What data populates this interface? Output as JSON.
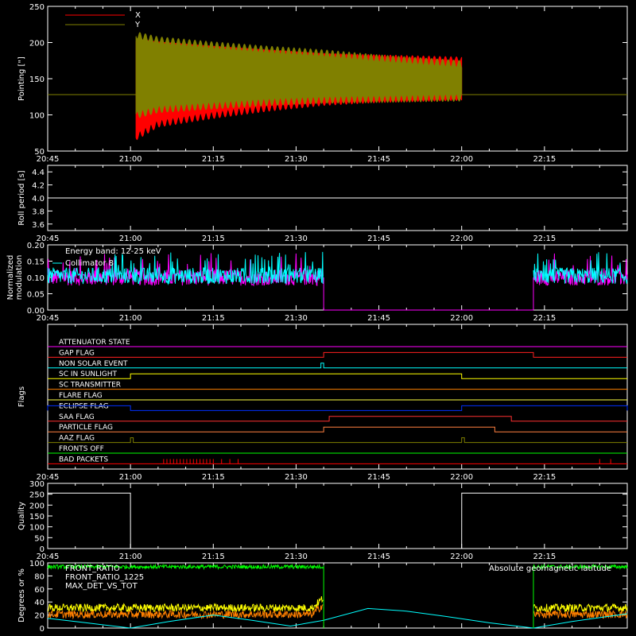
{
  "chart_data": [
    {
      "type": "line",
      "title": "",
      "ylabel": "Pointing [\"]",
      "ylim": [
        50,
        250
      ],
      "yticks": [
        "50",
        "100",
        "150",
        "200",
        "250"
      ],
      "legend": [
        "X",
        "Y"
      ],
      "colors": {
        "X": "#ff0000",
        "Y": "#808000",
        "baseline": "#808000"
      },
      "baseline": 128,
      "note_shape": "oscillating band",
      "series": [
        {
          "name": "X",
          "envelope_time_min": [
            15,
            16,
            20,
            30,
            40,
            50,
            60,
            75,
            76
          ],
          "upper": [
            128,
            200,
            196,
            190,
            185,
            180,
            178,
            175,
            128
          ],
          "lower": [
            128,
            70,
            88,
            100,
            110,
            118,
            122,
            125,
            128
          ]
        },
        {
          "name": "Y",
          "envelope_time_min": [
            15,
            16,
            20,
            30,
            40,
            50,
            60,
            75,
            76
          ],
          "upper": [
            128,
            210,
            203,
            196,
            190,
            185,
            178,
            170,
            128
          ],
          "lower": [
            128,
            100,
            108,
            113,
            118,
            121,
            122,
            124,
            128
          ]
        }
      ]
    },
    {
      "type": "line",
      "ylabel": "Roll period [s]",
      "ylim": [
        3.5,
        4.5
      ],
      "yticks": [
        "3.6",
        "3.8",
        "4.0",
        "4.2",
        "4.4"
      ],
      "series": [
        {
          "name": "",
          "value": 4.0,
          "color": "#ffffff"
        }
      ]
    },
    {
      "type": "line",
      "ylabel": "Normalized modulation",
      "ylim": [
        0,
        0.2
      ],
      "yticks": [
        "0.00",
        "0.05",
        "0.10",
        "0.15",
        "0.20"
      ],
      "annotations": [
        "Energy band: 12-25 keV",
        "Collimator 8"
      ],
      "series": [
        {
          "name": "Collimator 8",
          "color": "#00ffff",
          "mean": 0.105,
          "segments": [
            [
              0,
              50
            ],
            [
              88,
              105
            ]
          ]
        },
        {
          "name": "",
          "color": "#ff00ff",
          "mean": 0.1,
          "segments": [
            [
              0,
              50
            ],
            [
              88,
              105
            ]
          ]
        }
      ],
      "gap_minutes": [
        50,
        88
      ]
    },
    {
      "type": "line",
      "ylabel": "Flags",
      "flags": [
        {
          "name": "ATTENUATOR STATE",
          "color": "#ff00ff",
          "high": []
        },
        {
          "name": "GAP FLAG",
          "color": "#ff2020",
          "high": [
            [
              50,
              88
            ]
          ]
        },
        {
          "name": "NON SOLAR EVENT",
          "color": "#00ffff",
          "high": [
            [
              49.5,
              50
            ]
          ]
        },
        {
          "name": "SC IN SUNLIGHT",
          "color": "#ffff00",
          "high": [
            [
              15,
              75
            ]
          ]
        },
        {
          "name": "SC TRANSMITTER",
          "color": "#ff8000",
          "high": []
        },
        {
          "name": "FLARE FLAG",
          "color": "#ffff40",
          "high": []
        },
        {
          "name": "ECLIPSE FLAG",
          "color": "#0030ff",
          "high": [
            [
              0,
              15
            ],
            [
              75,
              105
            ]
          ]
        },
        {
          "name": "SAA FLAG",
          "color": "#ff3030",
          "high": [
            [
              51,
              84
            ]
          ]
        },
        {
          "name": "PARTICLE FLAG",
          "color": "#ff8040",
          "high": [
            [
              50,
              81
            ]
          ]
        },
        {
          "name": "AAZ FLAG",
          "color": "#808000",
          "high": [
            [
              15,
              15.5
            ],
            [
              75,
              75.5
            ]
          ]
        },
        {
          "name": "FRONTS OFF",
          "color": "#00ff00",
          "high": []
        },
        {
          "name": "BAD PACKETS",
          "color": "#ff0000",
          "ticks": [
            21,
            21.6,
            22.2,
            22.8,
            23.4,
            24,
            24.6,
            25.2,
            25.8,
            26.4,
            27,
            27.6,
            28.2,
            28.8,
            29.4,
            30,
            31.5,
            33,
            34.5,
            100,
            102
          ]
        }
      ]
    },
    {
      "type": "line",
      "ylabel": "Quality",
      "ylim": [
        0,
        300
      ],
      "yticks": [
        "0",
        "50",
        "100",
        "150",
        "200",
        "250",
        "300"
      ],
      "series": [
        {
          "name": "",
          "color": "#ffffff",
          "x_min": [
            0,
            15,
            15.01,
            75,
            75.01,
            105
          ],
          "y": [
            255,
            255,
            0,
            0,
            255,
            255
          ]
        }
      ]
    },
    {
      "type": "line",
      "ylabel": "Degrees or %",
      "ylim": [
        0,
        100
      ],
      "yticks": [
        "0",
        "20",
        "40",
        "60",
        "80",
        "100"
      ],
      "series": [
        {
          "name": "FRONT_RATIO",
          "color": "#00ff00",
          "mean": 94,
          "segments": [
            [
              0,
              50
            ],
            [
              88,
              105
            ]
          ]
        },
        {
          "name": "FRONT_RATIO_1225",
          "color": "#ffff00",
          "mean": 31,
          "segments": [
            [
              0,
              50
            ],
            [
              88,
              105
            ]
          ]
        },
        {
          "name": "MAX_DET_VS_TOT",
          "color": "#ff8000",
          "mean": 21,
          "segments": [
            [
              0,
              50
            ],
            [
              88,
              105
            ]
          ]
        },
        {
          "name": "Absolute geomagnetic latitude",
          "color": "#00ffff",
          "x_min": [
            0,
            7,
            15,
            22,
            30,
            37,
            44,
            50,
            58,
            65,
            72,
            80,
            88,
            95,
            100,
            105
          ],
          "y": [
            15,
            8,
            0,
            10,
            20,
            12,
            3,
            12,
            30,
            26,
            18,
            8,
            0,
            10,
            16,
            22
          ]
        }
      ]
    }
  ],
  "xaxis": {
    "start_minute_offset": 0,
    "ticks": [
      "20:45",
      "21:00",
      "21:15",
      "21:30",
      "21:45",
      "22:00",
      "22:15"
    ],
    "tick_minutes": [
      0,
      15,
      30,
      45,
      60,
      75,
      90
    ],
    "range_minutes": [
      0,
      105
    ]
  }
}
